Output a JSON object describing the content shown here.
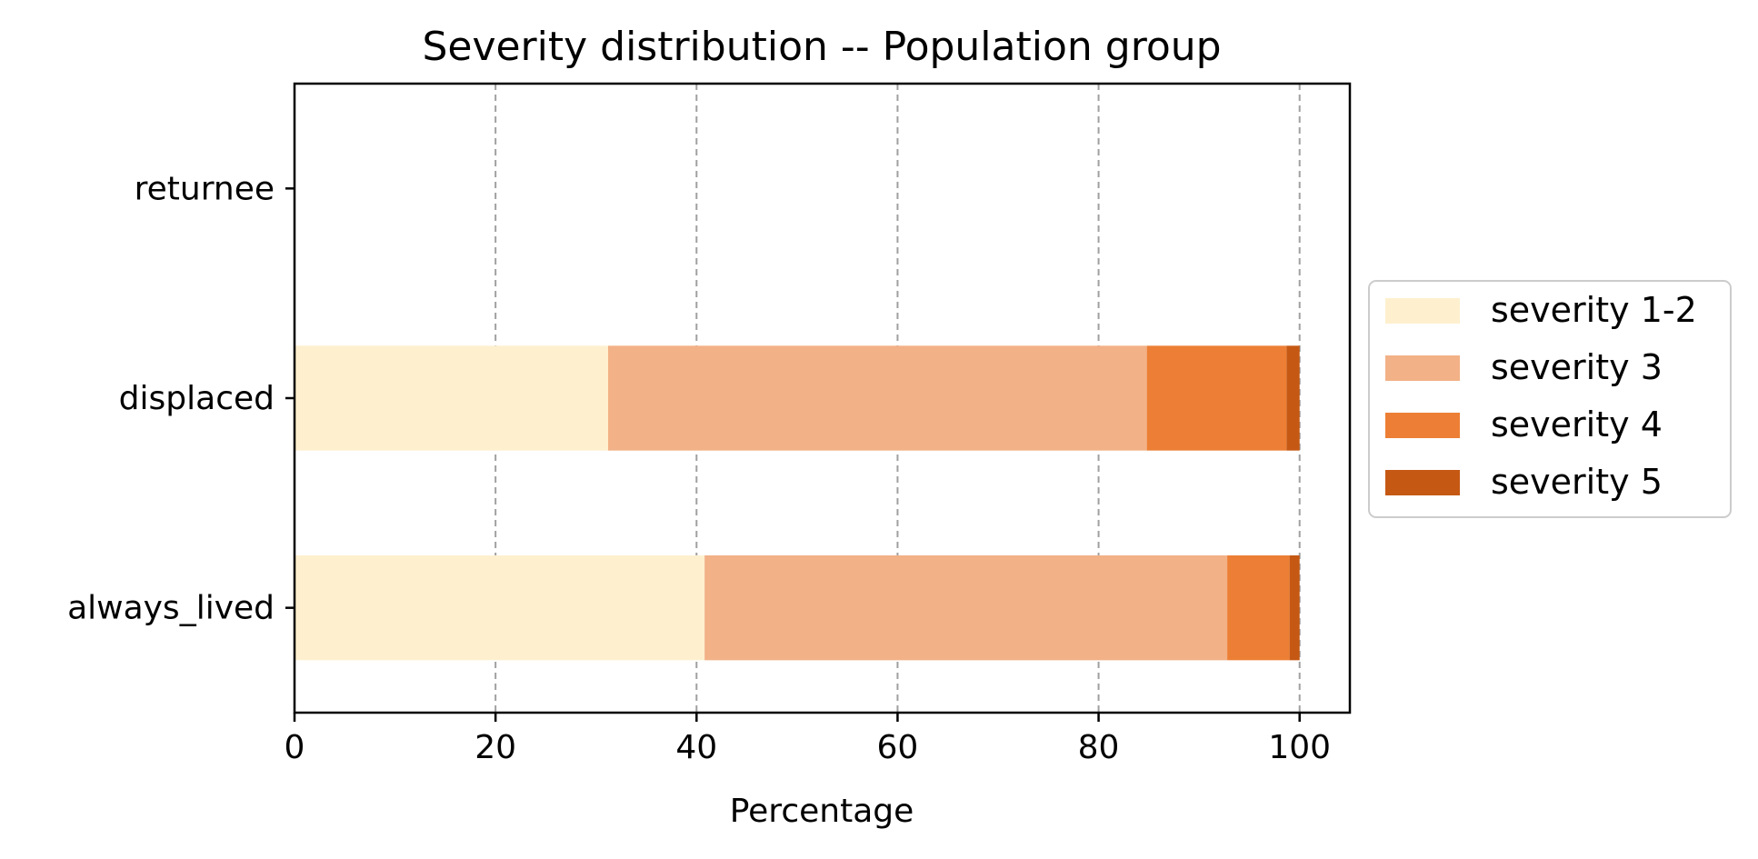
{
  "chart_data": {
    "type": "bar",
    "orientation": "horizontal",
    "stacked": true,
    "title": "Severity distribution -- Population group",
    "xlabel": "Percentage",
    "ylabel": "",
    "xlim": [
      0,
      105
    ],
    "xticks": [
      0,
      20,
      40,
      60,
      80,
      100
    ],
    "xtick_labels": [
      "0",
      "20",
      "40",
      "60",
      "80",
      "100"
    ],
    "grid": "x-axis dashed",
    "legend_placement": "center-right outside",
    "categories": [
      "always_lived",
      "displaced",
      "returnee"
    ],
    "series": [
      {
        "name": "severity 1-2",
        "color": "#FEF0CF",
        "values": [
          40.8,
          31.2,
          0
        ]
      },
      {
        "name": "severity 3",
        "color": "#F2B186",
        "values": [
          52.0,
          53.6,
          0
        ]
      },
      {
        "name": "severity 4",
        "color": "#EC7F35",
        "values": [
          6.2,
          13.9,
          0
        ]
      },
      {
        "name": "severity 5",
        "color": "#C55813",
        "values": [
          1.0,
          1.3,
          0
        ]
      }
    ]
  }
}
